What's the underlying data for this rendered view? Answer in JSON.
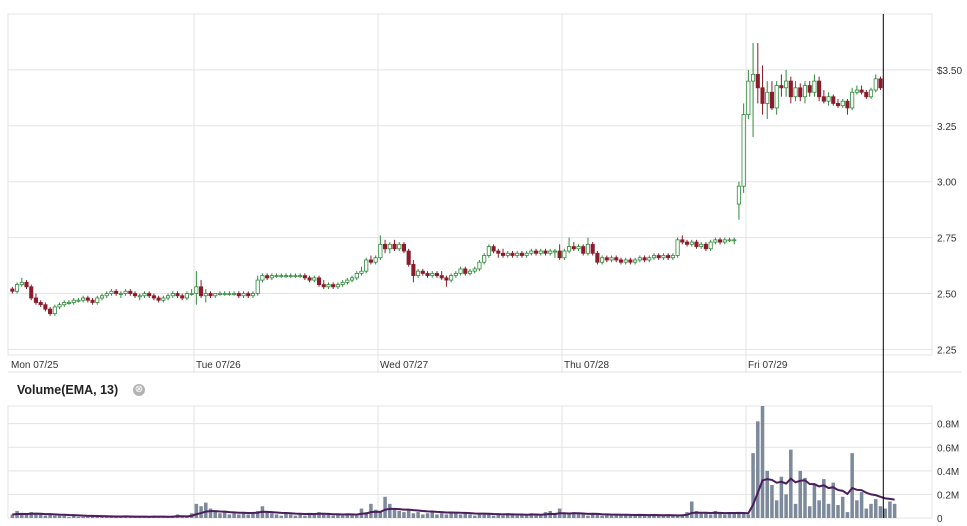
{
  "chart_data": {
    "type": "candlestick",
    "price_axis": {
      "ticks": [
        {
          "value": 3.5,
          "label": "$3.50"
        },
        {
          "value": 3.25,
          "label": "3.25"
        },
        {
          "value": 3.0,
          "label": "3.00"
        },
        {
          "value": 2.75,
          "label": "2.75"
        },
        {
          "value": 2.5,
          "label": "2.50"
        },
        {
          "value": 2.25,
          "label": "2.25"
        }
      ],
      "range": [
        2.225,
        3.75
      ]
    },
    "x_axis": {
      "days": [
        "Mon 07/25",
        "Tue 07/26",
        "Wed 07/27",
        "Thu 07/28",
        "Fri 07/29"
      ],
      "bars_per_day": 39,
      "total_slots": 195
    },
    "candles": [
      [
        2.52,
        2.53,
        2.5,
        2.51
      ],
      [
        2.51,
        2.55,
        2.5,
        2.54
      ],
      [
        2.54,
        2.57,
        2.53,
        2.55
      ],
      [
        2.55,
        2.56,
        2.52,
        2.53
      ],
      [
        2.53,
        2.54,
        2.47,
        2.48
      ],
      [
        2.48,
        2.5,
        2.45,
        2.46
      ],
      [
        2.46,
        2.47,
        2.44,
        2.45
      ],
      [
        2.45,
        2.46,
        2.42,
        2.43
      ],
      [
        2.43,
        2.44,
        2.4,
        2.41
      ],
      [
        2.41,
        2.45,
        2.4,
        2.44
      ],
      [
        2.44,
        2.46,
        2.43,
        2.45
      ],
      [
        2.45,
        2.47,
        2.44,
        2.46
      ],
      [
        2.46,
        2.47,
        2.45,
        2.46
      ],
      [
        2.46,
        2.48,
        2.45,
        2.47
      ],
      [
        2.47,
        2.48,
        2.46,
        2.47
      ],
      [
        2.47,
        2.49,
        2.46,
        2.48
      ],
      [
        2.48,
        2.49,
        2.46,
        2.47
      ],
      [
        2.47,
        2.48,
        2.45,
        2.46
      ],
      [
        2.46,
        2.49,
        2.45,
        2.48
      ],
      [
        2.48,
        2.5,
        2.47,
        2.49
      ],
      [
        2.49,
        2.51,
        2.48,
        2.5
      ],
      [
        2.5,
        2.52,
        2.49,
        2.51
      ],
      [
        2.51,
        2.52,
        2.49,
        2.5
      ],
      [
        2.5,
        2.51,
        2.48,
        2.5
      ],
      [
        2.5,
        2.52,
        2.49,
        2.51
      ],
      [
        2.51,
        2.52,
        2.49,
        2.5
      ],
      [
        2.5,
        2.51,
        2.48,
        2.49
      ],
      [
        2.49,
        2.5,
        2.47,
        2.49
      ],
      [
        2.49,
        2.51,
        2.48,
        2.5
      ],
      [
        2.5,
        2.51,
        2.48,
        2.49
      ],
      [
        2.49,
        2.5,
        2.47,
        2.48
      ],
      [
        2.48,
        2.49,
        2.46,
        2.47
      ],
      [
        2.47,
        2.49,
        2.46,
        2.48
      ],
      [
        2.48,
        2.5,
        2.47,
        2.49
      ],
      [
        2.49,
        2.51,
        2.48,
        2.5
      ],
      [
        2.5,
        2.51,
        2.48,
        2.49
      ],
      [
        2.49,
        2.5,
        2.47,
        2.48
      ],
      [
        2.48,
        2.51,
        2.47,
        2.5
      ],
      [
        2.5,
        2.52,
        2.49,
        2.5
      ],
      [
        2.5,
        2.6,
        2.45,
        2.53
      ],
      [
        2.53,
        2.56,
        2.48,
        2.49
      ],
      [
        2.49,
        2.52,
        2.46,
        2.5
      ],
      [
        2.5,
        2.51,
        2.48,
        2.49
      ],
      [
        2.49,
        2.5,
        2.48,
        2.5
      ],
      [
        2.5,
        2.51,
        2.49,
        2.5
      ],
      [
        2.5,
        2.51,
        2.49,
        2.5
      ],
      [
        2.5,
        2.51,
        2.49,
        2.5
      ],
      [
        2.5,
        2.51,
        2.49,
        2.5
      ],
      [
        2.5,
        2.51,
        2.48,
        2.49
      ],
      [
        2.49,
        2.51,
        2.48,
        2.5
      ],
      [
        2.5,
        2.51,
        2.48,
        2.49
      ],
      [
        2.49,
        2.51,
        2.48,
        2.5
      ],
      [
        2.5,
        2.58,
        2.49,
        2.56
      ],
      [
        2.56,
        2.59,
        2.55,
        2.58
      ],
      [
        2.58,
        2.59,
        2.56,
        2.57
      ],
      [
        2.57,
        2.59,
        2.56,
        2.58
      ],
      [
        2.58,
        2.59,
        2.57,
        2.58
      ],
      [
        2.58,
        2.59,
        2.57,
        2.58
      ],
      [
        2.58,
        2.59,
        2.57,
        2.58
      ],
      [
        2.58,
        2.59,
        2.57,
        2.58
      ],
      [
        2.58,
        2.59,
        2.57,
        2.58
      ],
      [
        2.58,
        2.59,
        2.57,
        2.58
      ],
      [
        2.58,
        2.59,
        2.56,
        2.57
      ],
      [
        2.57,
        2.58,
        2.55,
        2.56
      ],
      [
        2.56,
        2.58,
        2.55,
        2.57
      ],
      [
        2.57,
        2.58,
        2.53,
        2.54
      ],
      [
        2.54,
        2.56,
        2.52,
        2.53
      ],
      [
        2.53,
        2.55,
        2.52,
        2.54
      ],
      [
        2.54,
        2.55,
        2.52,
        2.53
      ],
      [
        2.53,
        2.55,
        2.52,
        2.54
      ],
      [
        2.54,
        2.56,
        2.53,
        2.55
      ],
      [
        2.55,
        2.57,
        2.54,
        2.56
      ],
      [
        2.56,
        2.58,
        2.55,
        2.57
      ],
      [
        2.57,
        2.6,
        2.56,
        2.59
      ],
      [
        2.59,
        2.62,
        2.58,
        2.6
      ],
      [
        2.6,
        2.66,
        2.59,
        2.65
      ],
      [
        2.65,
        2.67,
        2.63,
        2.64
      ],
      [
        2.64,
        2.67,
        2.63,
        2.66
      ],
      [
        2.66,
        2.76,
        2.65,
        2.72
      ],
      [
        2.72,
        2.74,
        2.68,
        2.7
      ],
      [
        2.7,
        2.73,
        2.68,
        2.72
      ],
      [
        2.72,
        2.74,
        2.69,
        2.7
      ],
      [
        2.7,
        2.73,
        2.69,
        2.72
      ],
      [
        2.72,
        2.73,
        2.68,
        2.69
      ],
      [
        2.69,
        2.7,
        2.62,
        2.63
      ],
      [
        2.63,
        2.65,
        2.55,
        2.58
      ],
      [
        2.58,
        2.61,
        2.57,
        2.6
      ],
      [
        2.6,
        2.61,
        2.58,
        2.59
      ],
      [
        2.59,
        2.6,
        2.57,
        2.58
      ],
      [
        2.58,
        2.6,
        2.57,
        2.59
      ],
      [
        2.59,
        2.6,
        2.57,
        2.58
      ],
      [
        2.58,
        2.6,
        2.56,
        2.57
      ],
      [
        2.57,
        2.58,
        2.53,
        2.56
      ],
      [
        2.56,
        2.59,
        2.55,
        2.58
      ],
      [
        2.58,
        2.6,
        2.57,
        2.59
      ],
      [
        2.59,
        2.62,
        2.58,
        2.61
      ],
      [
        2.61,
        2.62,
        2.58,
        2.59
      ],
      [
        2.59,
        2.61,
        2.58,
        2.6
      ],
      [
        2.6,
        2.62,
        2.59,
        2.61
      ],
      [
        2.61,
        2.65,
        2.6,
        2.64
      ],
      [
        2.64,
        2.68,
        2.63,
        2.67
      ],
      [
        2.67,
        2.72,
        2.66,
        2.71
      ],
      [
        2.71,
        2.72,
        2.68,
        2.69
      ],
      [
        2.69,
        2.7,
        2.66,
        2.68
      ],
      [
        2.68,
        2.7,
        2.66,
        2.67
      ],
      [
        2.67,
        2.69,
        2.66,
        2.68
      ],
      [
        2.68,
        2.69,
        2.66,
        2.67
      ],
      [
        2.67,
        2.69,
        2.66,
        2.68
      ],
      [
        2.68,
        2.69,
        2.66,
        2.67
      ],
      [
        2.67,
        2.69,
        2.66,
        2.68
      ],
      [
        2.68,
        2.7,
        2.67,
        2.69
      ],
      [
        2.69,
        2.7,
        2.67,
        2.68
      ],
      [
        2.68,
        2.7,
        2.67,
        2.69
      ],
      [
        2.69,
        2.7,
        2.67,
        2.68
      ],
      [
        2.68,
        2.7,
        2.67,
        2.69
      ],
      [
        2.69,
        2.7,
        2.66,
        2.69
      ],
      [
        2.69,
        2.72,
        2.65,
        2.66
      ],
      [
        2.66,
        2.7,
        2.65,
        2.69
      ],
      [
        2.69,
        2.75,
        2.68,
        2.71
      ],
      [
        2.71,
        2.73,
        2.69,
        2.7
      ],
      [
        2.7,
        2.72,
        2.69,
        2.71
      ],
      [
        2.71,
        2.72,
        2.67,
        2.68
      ],
      [
        2.68,
        2.75,
        2.67,
        2.72
      ],
      [
        2.72,
        2.73,
        2.67,
        2.68
      ],
      [
        2.68,
        2.69,
        2.63,
        2.64
      ],
      [
        2.64,
        2.67,
        2.63,
        2.66
      ],
      [
        2.66,
        2.67,
        2.64,
        2.65
      ],
      [
        2.65,
        2.67,
        2.64,
        2.66
      ],
      [
        2.66,
        2.67,
        2.64,
        2.65
      ],
      [
        2.65,
        2.66,
        2.63,
        2.64
      ],
      [
        2.64,
        2.66,
        2.63,
        2.65
      ],
      [
        2.65,
        2.66,
        2.63,
        2.64
      ],
      [
        2.64,
        2.66,
        2.63,
        2.65
      ],
      [
        2.65,
        2.67,
        2.64,
        2.66
      ],
      [
        2.66,
        2.67,
        2.64,
        2.65
      ],
      [
        2.65,
        2.67,
        2.64,
        2.66
      ],
      [
        2.66,
        2.68,
        2.65,
        2.67
      ],
      [
        2.67,
        2.68,
        2.65,
        2.66
      ],
      [
        2.66,
        2.68,
        2.65,
        2.67
      ],
      [
        2.67,
        2.68,
        2.65,
        2.66
      ],
      [
        2.66,
        2.68,
        2.65,
        2.67
      ],
      [
        2.67,
        2.75,
        2.66,
        2.74
      ],
      [
        2.74,
        2.76,
        2.72,
        2.73
      ],
      [
        2.73,
        2.74,
        2.71,
        2.72
      ],
      [
        2.72,
        2.74,
        2.71,
        2.73
      ],
      [
        2.73,
        2.74,
        2.7,
        2.71
      ],
      [
        2.71,
        2.73,
        2.7,
        2.72
      ],
      [
        2.72,
        2.73,
        2.69,
        2.7
      ],
      [
        2.7,
        2.74,
        2.69,
        2.73
      ],
      [
        2.73,
        2.75,
        2.72,
        2.74
      ],
      [
        2.74,
        2.75,
        2.72,
        2.73
      ],
      [
        2.73,
        2.75,
        2.72,
        2.74
      ],
      [
        2.74,
        2.75,
        2.73,
        2.74
      ],
      [
        2.74,
        2.75,
        2.72,
        2.74
      ],
      [
        2.9,
        3.0,
        2.83,
        2.98
      ],
      [
        2.98,
        3.35,
        2.95,
        3.3
      ],
      [
        3.3,
        3.5,
        3.28,
        3.45
      ],
      [
        3.45,
        3.62,
        3.2,
        3.48
      ],
      [
        3.48,
        3.62,
        3.35,
        3.42
      ],
      [
        3.42,
        3.52,
        3.3,
        3.35
      ],
      [
        3.35,
        3.45,
        3.28,
        3.4
      ],
      [
        3.4,
        3.45,
        3.32,
        3.33
      ],
      [
        3.33,
        3.45,
        3.3,
        3.43
      ],
      [
        3.43,
        3.48,
        3.38,
        3.42
      ],
      [
        3.42,
        3.5,
        3.38,
        3.45
      ],
      [
        3.45,
        3.47,
        3.35,
        3.38
      ],
      [
        3.38,
        3.45,
        3.36,
        3.42
      ],
      [
        3.42,
        3.44,
        3.36,
        3.38
      ],
      [
        3.38,
        3.45,
        3.35,
        3.43
      ],
      [
        3.43,
        3.45,
        3.38,
        3.4
      ],
      [
        3.4,
        3.48,
        3.38,
        3.45
      ],
      [
        3.45,
        3.47,
        3.36,
        3.38
      ],
      [
        3.38,
        3.41,
        3.35,
        3.36
      ],
      [
        3.36,
        3.4,
        3.34,
        3.38
      ],
      [
        3.38,
        3.39,
        3.34,
        3.35
      ],
      [
        3.35,
        3.37,
        3.33,
        3.34
      ],
      [
        3.34,
        3.37,
        3.33,
        3.36
      ],
      [
        3.36,
        3.37,
        3.3,
        3.33
      ],
      [
        3.33,
        3.42,
        3.32,
        3.4
      ],
      [
        3.4,
        3.43,
        3.39,
        3.41
      ],
      [
        3.41,
        3.43,
        3.39,
        3.4
      ],
      [
        3.4,
        3.41,
        3.37,
        3.38
      ],
      [
        3.38,
        3.42,
        3.37,
        3.41
      ],
      [
        3.41,
        3.48,
        3.4,
        3.46
      ],
      [
        3.46,
        3.47,
        3.41,
        3.42
      ]
    ],
    "volume_axis": {
      "ticks": [
        {
          "value": 0.8,
          "label": "0.8M"
        },
        {
          "value": 0.6,
          "label": "0.6M"
        },
        {
          "value": 0.4,
          "label": "0.4M"
        },
        {
          "value": 0.2,
          "label": "0.2M"
        },
        {
          "value": 0,
          "label": "0"
        }
      ],
      "range": [
        0,
        0.95
      ],
      "unit": "M"
    },
    "volume": [
      0.03,
      0.06,
      0.04,
      0.03,
      0.05,
      0.04,
      0.03,
      0.02,
      0.03,
      0.02,
      0.02,
      0.02,
      0.01,
      0.02,
      0.01,
      0.01,
      0.01,
      0.02,
      0.01,
      0.01,
      0.01,
      0.01,
      0.01,
      0.01,
      0.02,
      0.01,
      0.01,
      0.01,
      0.01,
      0.01,
      0.02,
      0.01,
      0.01,
      0.01,
      0.02,
      0.03,
      0.02,
      0.01,
      0.04,
      0.12,
      0.1,
      0.13,
      0.08,
      0.06,
      0.04,
      0.05,
      0.03,
      0.04,
      0.03,
      0.04,
      0.03,
      0.05,
      0.06,
      0.1,
      0.05,
      0.04,
      0.03,
      0.02,
      0.04,
      0.03,
      0.02,
      0.03,
      0.02,
      0.04,
      0.03,
      0.05,
      0.04,
      0.03,
      0.02,
      0.03,
      0.02,
      0.04,
      0.03,
      0.02,
      0.08,
      0.05,
      0.12,
      0.07,
      0.05,
      0.18,
      0.12,
      0.08,
      0.06,
      0.05,
      0.07,
      0.04,
      0.05,
      0.03,
      0.04,
      0.05,
      0.03,
      0.04,
      0.03,
      0.05,
      0.04,
      0.03,
      0.04,
      0.03,
      0.02,
      0.03,
      0.04,
      0.03,
      0.02,
      0.03,
      0.02,
      0.04,
      0.03,
      0.02,
      0.03,
      0.02,
      0.04,
      0.03,
      0.02,
      0.05,
      0.06,
      0.03,
      0.08,
      0.04,
      0.03,
      0.05,
      0.04,
      0.03,
      0.02,
      0.04,
      0.03,
      0.02,
      0.03,
      0.02,
      0.03,
      0.02,
      0.03,
      0.02,
      0.02,
      0.03,
      0.02,
      0.02,
      0.03,
      0.02,
      0.02,
      0.03,
      0.02,
      0.02,
      0.03,
      0.05,
      0.14,
      0.06,
      0.05,
      0.04,
      0.03,
      0.06,
      0.04,
      0.03,
      0.05,
      0.04,
      0.05,
      0.04,
      0.03,
      0.55,
      0.82,
      0.95,
      0.4,
      0.28,
      0.15,
      0.35,
      0.2,
      0.58,
      0.12,
      0.4,
      0.34,
      0.1,
      0.28,
      0.15,
      0.33,
      0.12,
      0.3,
      0.11,
      0.18,
      0.05,
      0.55,
      0.15,
      0.22,
      0.08,
      0.12,
      0.16,
      0.1,
      0.08,
      0.14,
      0.12
    ],
    "ema13": [
      0.03,
      0.034,
      0.035,
      0.034,
      0.036,
      0.037,
      0.036,
      0.033,
      0.033,
      0.031,
      0.029,
      0.028,
      0.025,
      0.024,
      0.022,
      0.02,
      0.018,
      0.018,
      0.017,
      0.016,
      0.015,
      0.014,
      0.013,
      0.013,
      0.014,
      0.013,
      0.012,
      0.012,
      0.012,
      0.011,
      0.012,
      0.012,
      0.012,
      0.011,
      0.012,
      0.015,
      0.015,
      0.014,
      0.018,
      0.032,
      0.042,
      0.054,
      0.058,
      0.058,
      0.055,
      0.054,
      0.05,
      0.048,
      0.045,
      0.044,
      0.042,
      0.043,
      0.045,
      0.053,
      0.052,
      0.05,
      0.047,
      0.043,
      0.042,
      0.04,
      0.037,
      0.036,
      0.034,
      0.035,
      0.034,
      0.036,
      0.036,
      0.035,
      0.032,
      0.032,
      0.03,
      0.031,
      0.031,
      0.029,
      0.036,
      0.038,
      0.05,
      0.053,
      0.052,
      0.07,
      0.077,
      0.077,
      0.075,
      0.071,
      0.071,
      0.067,
      0.064,
      0.059,
      0.056,
      0.055,
      0.052,
      0.05,
      0.047,
      0.047,
      0.046,
      0.044,
      0.043,
      0.041,
      0.038,
      0.037,
      0.037,
      0.036,
      0.034,
      0.033,
      0.031,
      0.032,
      0.031,
      0.03,
      0.03,
      0.028,
      0.03,
      0.03,
      0.028,
      0.031,
      0.035,
      0.034,
      0.04,
      0.04,
      0.038,
      0.04,
      0.04,
      0.038,
      0.035,
      0.036,
      0.035,
      0.032,
      0.031,
      0.029,
      0.029,
      0.028,
      0.028,
      0.027,
      0.025,
      0.026,
      0.025,
      0.024,
      0.025,
      0.024,
      0.023,
      0.024,
      0.023,
      0.022,
      0.023,
      0.027,
      0.043,
      0.045,
      0.045,
      0.044,
      0.042,
      0.044,
      0.043,
      0.041,
      0.042,
      0.042,
      0.043,
      0.042,
      0.04,
      0.113,
      0.214,
      0.319,
      0.33,
      0.323,
      0.299,
      0.307,
      0.292,
      0.333,
      0.303,
      0.316,
      0.32,
      0.288,
      0.287,
      0.268,
      0.277,
      0.254,
      0.26,
      0.238,
      0.23,
      0.204,
      0.254,
      0.239,
      0.236,
      0.214,
      0.2,
      0.194,
      0.18,
      0.166,
      0.162,
      0.156
    ],
    "colors": {
      "up": "#2e8b3a",
      "down": "#8b1c2c",
      "volume_bar": "#7d8a9c",
      "ema_line": "#4b1d5c",
      "grid": "#e3e3e3",
      "cursor": "#000000"
    },
    "grid": true
  },
  "study": {
    "label": "Volume(EMA, 13)",
    "close_symbol": "⊗"
  }
}
